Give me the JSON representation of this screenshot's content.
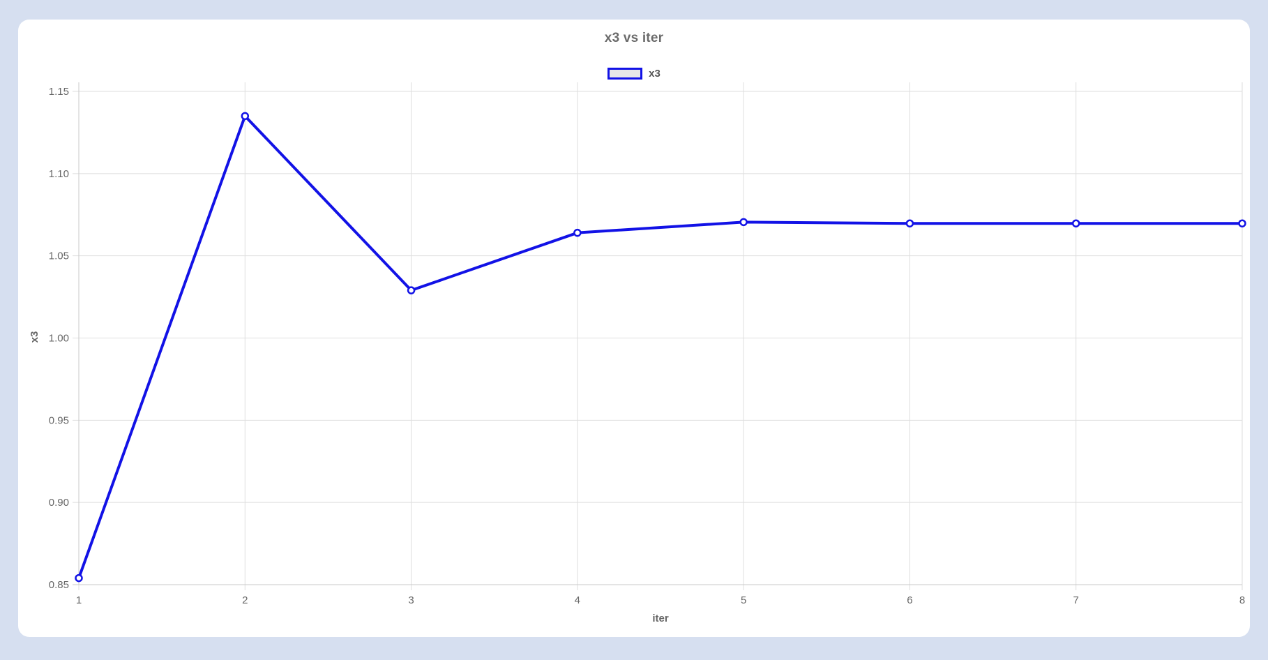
{
  "app": {
    "background_color": "#d6dff0",
    "card_color": "#ffffff"
  },
  "chart_data": {
    "type": "line",
    "title": "x3 vs iter",
    "xlabel": "iter",
    "ylabel": "x3",
    "x": [
      1,
      2,
      3,
      4,
      5,
      6,
      7,
      8
    ],
    "x_ticks": [
      "1",
      "2",
      "3",
      "4",
      "5",
      "6",
      "7",
      "8"
    ],
    "y_ticks": [
      "0.85",
      "0.90",
      "0.95",
      "1.00",
      "1.05",
      "1.10",
      "1.15"
    ],
    "xlim": [
      1,
      8
    ],
    "ylim": [
      0.85,
      1.15
    ],
    "grid": true,
    "legend_position": "top-center",
    "series": [
      {
        "name": "x3",
        "color": "#1212e6",
        "marker": "open-circle",
        "values": [
          0.854,
          1.135,
          1.029,
          1.064,
          1.0705,
          1.0697,
          1.0697,
          1.0697
        ]
      }
    ],
    "styles": {
      "grid_color": "#dedede",
      "axis_color": "#c9c9c9",
      "tick_label_color": "#666666",
      "title_color": "#6b6b6b",
      "legend_swatch_fill": "#e8e8e8"
    }
  }
}
